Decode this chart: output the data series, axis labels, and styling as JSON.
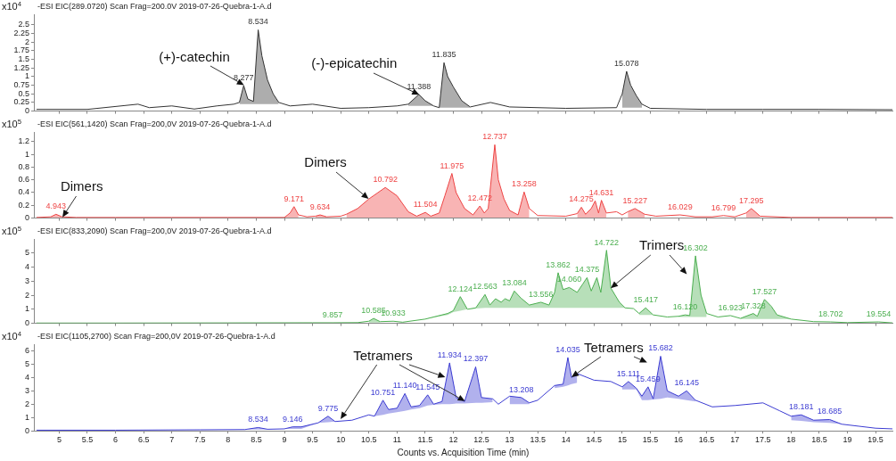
{
  "chart_data": [
    {
      "type": "line",
      "title": "-ESI EIC(289.0720) Scan Frag=200.0V 2019-07-26-Quebra-1-A.d",
      "ylabel": "x10$^{4}$",
      "marker": "none",
      "line_style": "solid",
      "tick_labels": "y",
      "xlim": [
        4.55,
        19.8
      ],
      "xticks": [
        5,
        5.5,
        6,
        6.5,
        7,
        7.5,
        8,
        8.5,
        9,
        9.5,
        10,
        10.5,
        11,
        11.5,
        12,
        12.5,
        13,
        13.5,
        14,
        14.5,
        15,
        15.5,
        16,
        16.5,
        17,
        17.5,
        18,
        18.5,
        19,
        19.5
      ],
      "ylim": [
        0,
        2.8
      ],
      "yticks": [
        0,
        0.25,
        0.5,
        0.75,
        1,
        1.25,
        1.5,
        1.75,
        2,
        2.25,
        2.5
      ],
      "x": [
        4.6,
        5.5,
        6.4,
        6.6,
        7.0,
        7.4,
        7.8,
        8.1,
        8.2,
        8.277,
        8.35,
        8.45,
        8.534,
        8.6,
        8.7,
        8.8,
        8.9,
        9.1,
        9.5,
        10.0,
        10.5,
        11.0,
        11.2,
        11.388,
        11.5,
        11.65,
        11.75,
        11.835,
        11.9,
        12.0,
        12.15,
        12.3,
        12.66,
        13.0,
        14.0,
        14.9,
        15.0,
        15.078,
        15.15,
        15.25,
        15.35,
        15.5,
        16.5,
        17.5,
        18.5,
        19.8
      ],
      "series": [
        {
          "color": "#333333",
          "values": [
            0.05,
            0.05,
            0.2,
            0.1,
            0.15,
            0.06,
            0.15,
            0.2,
            0.25,
            0.74,
            0.35,
            0.28,
            2.35,
            1.6,
            0.9,
            0.5,
            0.25,
            0.15,
            0.2,
            0.08,
            0.1,
            0.15,
            0.2,
            0.48,
            0.3,
            0.15,
            0.1,
            1.4,
            1.0,
            0.7,
            0.3,
            0.12,
            0.25,
            0.12,
            0.08,
            0.1,
            0.5,
            1.15,
            0.75,
            0.45,
            0.2,
            0.08,
            0.05,
            0.05,
            0.05,
            0.04
          ],
          "upper": [
            null,
            null,
            null,
            null,
            null,
            null,
            null,
            null,
            0.25,
            0.74,
            0.35,
            0.28,
            2.35,
            1.6,
            0.9,
            0.5,
            0.25,
            null,
            null,
            null,
            null,
            null,
            0.2,
            0.48,
            0.3,
            0.15,
            0.1,
            1.4,
            1.0,
            0.7,
            0.3,
            0.12,
            null,
            null,
            null,
            null,
            0.5,
            1.15,
            0.75,
            0.45,
            0.2,
            null,
            null,
            null,
            null,
            null
          ],
          "lower": [
            null,
            null,
            null,
            null,
            null,
            null,
            null,
            null,
            0.2,
            0.2,
            0.2,
            0.2,
            0.2,
            0.2,
            0.2,
            0.2,
            0.2,
            null,
            null,
            null,
            null,
            null,
            0.15,
            0.15,
            0.15,
            0.15,
            0.1,
            0.1,
            0.1,
            0.1,
            0.1,
            0.1,
            null,
            null,
            null,
            null,
            0.1,
            0.1,
            0.1,
            0.1,
            0.1,
            null,
            null,
            null,
            null,
            null
          ]
        }
      ],
      "annotations": [
        {
          "text": "8.277",
          "x": 8.277,
          "y": 0.74
        },
        {
          "text": "8.534",
          "x": 8.534,
          "y": 2.35
        },
        {
          "text": "11.388",
          "x": 11.388,
          "y": 0.48
        },
        {
          "text": "11.835",
          "x": 11.835,
          "y": 1.4
        },
        {
          "text": "15.078",
          "x": 15.078,
          "y": 1.15
        },
        {
          "text": "(+)-catechin",
          "x": 8.277,
          "y": 0.74
        },
        {
          "text": "(-)-epicatechin",
          "x": 11.388,
          "y": 0.48
        }
      ]
    },
    {
      "type": "line",
      "title": "-ESI EIC(561,1420) Scan Frag=200,0V 2019-07-26-Quebra-1-A.d",
      "ylabel": "x10$^{5}$",
      "marker": "none",
      "line_style": "solid",
      "tick_labels": "y",
      "xlim": [
        4.55,
        19.8
      ],
      "xticks": [
        5,
        5.5,
        6,
        6.5,
        7,
        7.5,
        8,
        8.5,
        9,
        9.5,
        10,
        10.5,
        11,
        11.5,
        12,
        12.5,
        13,
        13.5,
        14,
        14.5,
        15,
        15.5,
        16,
        16.5,
        17,
        17.5,
        18,
        18.5,
        19,
        19.5
      ],
      "ylim": [
        0,
        1.35
      ],
      "yticks": [
        0,
        0.2,
        0.4,
        0.6,
        0.8,
        1,
        1.2
      ],
      "x": [
        4.6,
        4.85,
        4.943,
        5.05,
        5.3,
        6,
        7,
        8,
        9.0,
        9.1,
        9.171,
        9.25,
        9.4,
        9.55,
        9.634,
        9.75,
        10.0,
        10.1,
        10.3,
        10.5,
        10.792,
        11.0,
        11.2,
        11.35,
        11.504,
        11.6,
        11.75,
        11.85,
        11.975,
        12.05,
        12.2,
        12.35,
        12.472,
        12.55,
        12.62,
        12.737,
        12.8,
        12.9,
        13.0,
        13.15,
        13.258,
        13.35,
        13.5,
        14.0,
        14.2,
        14.275,
        14.35,
        14.45,
        14.52,
        14.58,
        14.631,
        14.72,
        14.9,
        15.0,
        15.1,
        15.227,
        15.4,
        15.6,
        16.029,
        16.3,
        16.6,
        16.799,
        17.0,
        17.2,
        17.295,
        17.45,
        18,
        19,
        19.8
      ],
      "series": [
        {
          "color": "#ee4444",
          "values": [
            0.01,
            0.02,
            0.06,
            0.02,
            0.01,
            0.01,
            0.01,
            0.01,
            0.01,
            0.08,
            0.18,
            0.05,
            0.02,
            0.03,
            0.05,
            0.02,
            0.03,
            0.06,
            0.15,
            0.3,
            0.48,
            0.35,
            0.1,
            0.03,
            0.09,
            0.03,
            0.08,
            0.35,
            0.7,
            0.4,
            0.15,
            0.05,
            0.19,
            0.08,
            0.15,
            1.15,
            0.6,
            0.3,
            0.12,
            0.05,
            0.41,
            0.15,
            0.04,
            0.03,
            0.07,
            0.17,
            0.06,
            0.15,
            0.27,
            0.08,
            0.28,
            0.08,
            0.1,
            0.05,
            0.1,
            0.15,
            0.06,
            0.03,
            0.05,
            0.02,
            0.02,
            0.04,
            0.02,
            0.08,
            0.15,
            0.03,
            0.01,
            0.01,
            0.01
          ],
          "upper": [
            null,
            0.02,
            0.06,
            0.02,
            null,
            null,
            null,
            null,
            0.01,
            0.08,
            0.18,
            0.05,
            null,
            0.03,
            0.05,
            0.02,
            null,
            0.06,
            0.15,
            0.3,
            0.48,
            0.35,
            0.1,
            0.03,
            0.09,
            0.03,
            0.08,
            0.35,
            0.7,
            0.4,
            0.15,
            0.05,
            0.19,
            0.08,
            0.15,
            1.15,
            0.6,
            0.3,
            0.12,
            0.05,
            0.41,
            0.15,
            null,
            null,
            0.07,
            0.17,
            0.06,
            0.15,
            0.27,
            0.08,
            0.28,
            0.08,
            null,
            null,
            0.1,
            0.15,
            0.06,
            null,
            null,
            null,
            null,
            null,
            null,
            0.08,
            0.15,
            0.03,
            null,
            null,
            null
          ],
          "lower": [
            null,
            0.01,
            0.01,
            0.01,
            null,
            null,
            null,
            null,
            0.01,
            0.01,
            0.01,
            0.01,
            null,
            0.01,
            0.01,
            0.01,
            null,
            0.01,
            0.01,
            0.01,
            0.01,
            0.01,
            0.01,
            0.01,
            0.01,
            0.01,
            0.01,
            0.01,
            0.01,
            0.01,
            0.01,
            0.01,
            0.01,
            0.01,
            0.01,
            0.01,
            0.01,
            0.01,
            0.01,
            0.01,
            0.01,
            0.01,
            null,
            null,
            0.01,
            0.01,
            0.01,
            0.01,
            0.01,
            0.01,
            0.01,
            0.01,
            null,
            null,
            0.01,
            0.01,
            0.01,
            null,
            null,
            null,
            null,
            null,
            null,
            0.01,
            0.01,
            0.01,
            null,
            null,
            null
          ]
        }
      ],
      "annotations": [
        {
          "text": "4.943",
          "x": 4.943,
          "y": 0.06
        },
        {
          "text": "9.171",
          "x": 9.171,
          "y": 0.18
        },
        {
          "text": "9.634",
          "x": 9.634,
          "y": 0.05
        },
        {
          "text": "10.792",
          "x": 10.792,
          "y": 0.48
        },
        {
          "text": "11.504",
          "x": 11.504,
          "y": 0.09
        },
        {
          "text": "11.975",
          "x": 11.975,
          "y": 0.7
        },
        {
          "text": "12.472",
          "x": 12.472,
          "y": 0.19
        },
        {
          "text": "12.737",
          "x": 12.737,
          "y": 1.15
        },
        {
          "text": "13.258",
          "x": 13.258,
          "y": 0.41
        },
        {
          "text": "14.275",
          "x": 14.275,
          "y": 0.17
        },
        {
          "text": "14.631",
          "x": 14.631,
          "y": 0.28
        },
        {
          "text": "15.227",
          "x": 15.227,
          "y": 0.15
        },
        {
          "text": "16.029",
          "x": 16.029,
          "y": 0.05
        },
        {
          "text": "16.799",
          "x": 16.799,
          "y": 0.04
        },
        {
          "text": "17.295",
          "x": 17.295,
          "y": 0.15
        },
        {
          "text": "Dimers",
          "x": 5.05,
          "y": 0.02
        },
        {
          "text": "Dimers",
          "x": 10.5,
          "y": 0.3
        }
      ]
    },
    {
      "type": "line",
      "title": "-ESI EIC(833,2090) Scan Frag=200,0V 2019-07-26-Quebra-1-A.d",
      "ylabel": "x10$^{5}$",
      "marker": "none",
      "line_style": "solid",
      "tick_labels": "y",
      "xlim": [
        4.55,
        19.8
      ],
      "xticks": [
        5,
        5.5,
        6,
        6.5,
        7,
        7.5,
        8,
        8.5,
        9,
        9.5,
        10,
        10.5,
        11,
        11.5,
        12,
        12.5,
        13,
        13.5,
        14,
        14.5,
        15,
        15.5,
        16,
        16.5,
        17,
        17.5,
        18,
        18.5,
        19,
        19.5
      ],
      "ylim": [
        0,
        6
      ],
      "yticks": [
        0,
        1,
        2,
        3,
        4,
        5
      ],
      "x": [
        4.6,
        6,
        8,
        9.5,
        9.857,
        10.3,
        10.5,
        10.585,
        10.7,
        10.933,
        11.1,
        11.5,
        11.9,
        12.0,
        12.124,
        12.25,
        12.4,
        12.563,
        12.65,
        12.75,
        12.85,
        12.92,
        13.0,
        13.084,
        13.2,
        13.35,
        13.556,
        13.7,
        13.8,
        13.862,
        13.95,
        14.06,
        14.2,
        14.3,
        14.375,
        14.45,
        14.55,
        14.62,
        14.722,
        14.8,
        14.95,
        15.05,
        15.2,
        15.3,
        15.417,
        15.55,
        15.8,
        16.0,
        16.12,
        16.2,
        16.302,
        16.4,
        16.5,
        16.7,
        16.923,
        17.1,
        17.328,
        17.4,
        17.527,
        17.65,
        17.75,
        18.0,
        18.4,
        18.702,
        19.0,
        19.554,
        19.8
      ],
      "series": [
        {
          "color": "#4caf50",
          "values": [
            0.02,
            0.02,
            0.03,
            0.04,
            0.04,
            0.05,
            0.15,
            0.35,
            0.12,
            0.15,
            0.08,
            0.3,
            0.7,
            0.9,
            1.9,
            1.0,
            1.1,
            2.05,
            1.3,
            1.75,
            1.5,
            1.75,
            1.6,
            2.3,
            1.8,
            1.3,
            1.5,
            1.3,
            2.2,
            3.6,
            2.4,
            2.55,
            2.2,
            2.8,
            3.25,
            2.3,
            3.25,
            2.2,
            5.2,
            2.5,
            1.5,
            1.1,
            1.05,
            0.7,
            1.1,
            0.6,
            0.45,
            0.5,
            0.6,
            0.55,
            4.8,
            2.0,
            0.7,
            0.45,
            0.55,
            0.35,
            0.7,
            0.5,
            1.7,
            1.2,
            0.6,
            0.3,
            0.12,
            0.1,
            0.05,
            0.1,
            0.03
          ],
          "upper": [
            null,
            null,
            null,
            null,
            null,
            null,
            0.15,
            0.35,
            0.12,
            null,
            null,
            0.3,
            0.7,
            0.9,
            1.9,
            1.0,
            1.1,
            2.05,
            1.3,
            1.75,
            1.5,
            1.75,
            1.6,
            2.3,
            1.8,
            1.3,
            1.5,
            1.3,
            2.2,
            3.6,
            2.4,
            2.55,
            2.2,
            2.8,
            3.25,
            2.3,
            3.25,
            2.2,
            5.2,
            2.5,
            1.5,
            1.1,
            null,
            0.7,
            1.1,
            0.6,
            null,
            0.5,
            0.6,
            0.55,
            4.8,
            2.0,
            0.7,
            null,
            null,
            0.35,
            0.7,
            0.5,
            1.7,
            1.2,
            0.6,
            0.3,
            null,
            null,
            null,
            null,
            null
          ],
          "lower": [
            null,
            null,
            null,
            null,
            null,
            null,
            0.05,
            0.05,
            0.05,
            null,
            null,
            0.3,
            0.6,
            0.8,
            0.9,
            1.0,
            1.05,
            1.1,
            1.1,
            1.1,
            1.1,
            1.1,
            1.1,
            1.1,
            1.1,
            1.1,
            1.1,
            1.1,
            1.1,
            1.1,
            1.1,
            1.1,
            1.1,
            1.1,
            1.1,
            1.1,
            1.1,
            1.1,
            1.1,
            1.1,
            1.1,
            1.1,
            null,
            0.6,
            0.6,
            0.6,
            null,
            0.45,
            0.45,
            0.45,
            0.45,
            0.45,
            0.45,
            null,
            null,
            0.3,
            0.3,
            0.3,
            0.3,
            0.3,
            0.3,
            0.3,
            null,
            null,
            null,
            null,
            null
          ]
        }
      ],
      "annotations": [
        {
          "text": "9.857",
          "x": 9.857,
          "y": 0.04
        },
        {
          "text": "10.585",
          "x": 10.585,
          "y": 0.35
        },
        {
          "text": "10.933",
          "x": 10.933,
          "y": 0.15
        },
        {
          "text": "12.124",
          "x": 12.124,
          "y": 1.9
        },
        {
          "text": "12.563",
          "x": 12.563,
          "y": 2.05
        },
        {
          "text": "13.084",
          "x": 13.084,
          "y": 2.3
        },
        {
          "text": "13.556",
          "x": 13.556,
          "y": 1.5
        },
        {
          "text": "13.862",
          "x": 13.862,
          "y": 3.6
        },
        {
          "text": "14.060",
          "x": 14.06,
          "y": 2.55
        },
        {
          "text": "14.375",
          "x": 14.375,
          "y": 3.25
        },
        {
          "text": "14.722",
          "x": 14.722,
          "y": 5.2
        },
        {
          "text": "15.417",
          "x": 15.417,
          "y": 1.1
        },
        {
          "text": "16.120",
          "x": 16.12,
          "y": 0.6
        },
        {
          "text": "16.302",
          "x": 16.302,
          "y": 4.8
        },
        {
          "text": "16.923",
          "x": 16.923,
          "y": 0.55
        },
        {
          "text": "17.328",
          "x": 17.328,
          "y": 0.7
        },
        {
          "text": "17.527",
          "x": 17.527,
          "y": 1.7
        },
        {
          "text": "18.702",
          "x": 18.702,
          "y": 0.1
        },
        {
          "text": "19.554",
          "x": 19.554,
          "y": 0.1
        },
        {
          "text": "Trimers",
          "x": 14.8,
          "y": 2.5
        }
      ]
    },
    {
      "type": "line",
      "title": "-ESI EIC(1105,2700) Scan Frag=200,0V 2019-07-26-Quebra-1-A.d",
      "ylabel": "x10$^{4}$",
      "xlabel": "Counts vs. Acquisition Time (min)",
      "marker": "none",
      "line_style": "solid",
      "xlim": [
        4.55,
        19.8
      ],
      "xticks": [
        5,
        5.5,
        6,
        6.5,
        7,
        7.5,
        8,
        8.5,
        9,
        9.5,
        10,
        10.5,
        11,
        11.5,
        12,
        12.5,
        13,
        13.5,
        14,
        14.5,
        15,
        15.5,
        16,
        16.5,
        17,
        17.5,
        18,
        18.5,
        19,
        19.5
      ],
      "ylim": [
        0,
        6.5
      ],
      "yticks": [
        0,
        1,
        2,
        3,
        4,
        5,
        6
      ],
      "x": [
        4.6,
        6,
        7.5,
        8.3,
        8.534,
        8.7,
        9.0,
        9.146,
        9.3,
        9.6,
        9.775,
        9.9,
        10.2,
        10.5,
        10.6,
        10.751,
        10.85,
        11.0,
        11.14,
        11.25,
        11.4,
        11.545,
        11.65,
        11.8,
        11.934,
        12.05,
        12.2,
        12.397,
        12.5,
        12.7,
        12.8,
        13.0,
        13.208,
        13.35,
        13.5,
        13.8,
        13.95,
        14.035,
        14.1,
        14.2,
        14.5,
        14.8,
        15.0,
        15.111,
        15.25,
        15.35,
        15.459,
        15.55,
        15.682,
        15.8,
        16.0,
        16.145,
        16.3,
        16.6,
        17.0,
        17.5,
        17.8,
        18.0,
        18.181,
        18.4,
        18.685,
        18.9,
        19.2,
        19.5,
        19.8
      ],
      "series": [
        {
          "color": "#3c3cd2",
          "values": [
            0.05,
            0.05,
            0.08,
            0.1,
            0.25,
            0.12,
            0.15,
            0.3,
            0.3,
            0.6,
            1.1,
            0.7,
            0.8,
            1.2,
            1.1,
            2.3,
            1.6,
            1.7,
            2.8,
            1.8,
            1.9,
            2.7,
            2.0,
            2.2,
            5.1,
            2.5,
            2.2,
            4.8,
            2.5,
            2.4,
            2.0,
            2.6,
            2.5,
            2.1,
            2.3,
            3.4,
            3.5,
            5.5,
            4.0,
            4.3,
            3.8,
            3.7,
            3.3,
            3.7,
            3.2,
            2.6,
            3.3,
            2.4,
            5.6,
            3.0,
            2.6,
            3.0,
            2.3,
            1.8,
            1.9,
            2.1,
            1.5,
            1.1,
            1.2,
            0.8,
            0.85,
            0.5,
            0.35,
            0.2,
            0.15
          ],
          "upper": [
            null,
            null,
            null,
            0.1,
            0.25,
            0.12,
            0.15,
            0.3,
            0.3,
            0.6,
            1.1,
            0.7,
            null,
            null,
            1.1,
            2.3,
            1.6,
            1.7,
            2.8,
            1.8,
            1.9,
            2.7,
            2.0,
            2.2,
            5.1,
            2.5,
            2.2,
            4.8,
            2.5,
            2.4,
            null,
            2.6,
            2.5,
            2.1,
            null,
            3.4,
            3.5,
            5.5,
            4.0,
            4.3,
            null,
            null,
            3.3,
            3.7,
            3.2,
            2.6,
            3.3,
            2.4,
            5.6,
            3.0,
            2.6,
            3.0,
            2.3,
            null,
            null,
            null,
            null,
            1.1,
            1.2,
            0.8,
            0.85,
            0.5,
            null,
            null,
            null
          ],
          "lower": [
            null,
            null,
            null,
            0.1,
            0.1,
            0.1,
            0.15,
            0.15,
            0.15,
            0.6,
            0.65,
            0.7,
            null,
            null,
            1.1,
            1.2,
            1.3,
            1.4,
            1.5,
            1.6,
            1.7,
            1.9,
            1.95,
            2.0,
            2.0,
            2.05,
            2.05,
            2.1,
            2.1,
            2.15,
            null,
            2.0,
            2.0,
            2.0,
            null,
            3.2,
            3.3,
            3.4,
            3.5,
            3.6,
            null,
            null,
            3.1,
            3.1,
            3.1,
            2.3,
            2.3,
            2.35,
            2.4,
            2.5,
            2.4,
            2.3,
            2.2,
            null,
            null,
            null,
            null,
            0.8,
            0.75,
            0.65,
            0.6,
            0.5,
            null,
            null,
            null
          ]
        }
      ],
      "annotations": [
        {
          "text": "8.534",
          "x": 8.534,
          "y": 0.25
        },
        {
          "text": "9.146",
          "x": 9.146,
          "y": 0.3
        },
        {
          "text": "9.775",
          "x": 9.775,
          "y": 1.1
        },
        {
          "text": "10.751",
          "x": 10.751,
          "y": 2.3
        },
        {
          "text": "11.140",
          "x": 11.14,
          "y": 2.8
        },
        {
          "text": "11.545",
          "x": 11.545,
          "y": 2.7
        },
        {
          "text": "11.934",
          "x": 11.934,
          "y": 5.1
        },
        {
          "text": "12.397",
          "x": 12.397,
          "y": 4.8
        },
        {
          "text": "13.208",
          "x": 13.208,
          "y": 2.5
        },
        {
          "text": "14.035",
          "x": 14.035,
          "y": 5.5
        },
        {
          "text": "15.111",
          "x": 15.111,
          "y": 3.7
        },
        {
          "text": "15.459",
          "x": 15.459,
          "y": 3.3
        },
        {
          "text": "15.682",
          "x": 15.682,
          "y": 5.6
        },
        {
          "text": "16.145",
          "x": 16.145,
          "y": 3.0
        },
        {
          "text": "18.181",
          "x": 18.181,
          "y": 1.2
        },
        {
          "text": "18.685",
          "x": 18.685,
          "y": 0.85
        },
        {
          "text": "Tetramers",
          "x": 12.2,
          "y": 2.2
        },
        {
          "text": "Tetramers",
          "x": 14.1,
          "y": 4.0
        }
      ]
    }
  ]
}
